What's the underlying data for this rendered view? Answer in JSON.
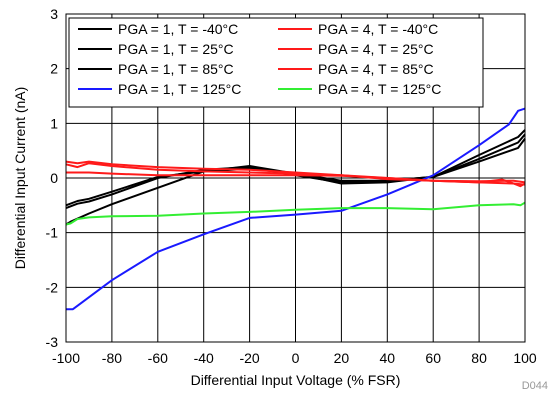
{
  "chart_data": {
    "type": "line",
    "title": "",
    "xlabel": "Differential Input Voltage (% FSR)",
    "ylabel": "Differential Input Current (nA)",
    "xlim": [
      -100,
      100
    ],
    "ylim": [
      -3,
      3
    ],
    "x_ticks": [
      "-100",
      "-80",
      "-60",
      "-40",
      "-20",
      "0",
      "20",
      "40",
      "60",
      "80",
      "100"
    ],
    "y_ticks": [
      "-3",
      "-2",
      "-1",
      "0",
      "1",
      "2",
      "3"
    ],
    "grid": true,
    "legend_position": "top",
    "figure_code": "D044",
    "series": [
      {
        "name": "PGA = 1, T = -40°C",
        "color": "#000000",
        "x": [
          -100,
          -95,
          -90,
          -80,
          -60,
          -40,
          -20,
          0,
          20,
          40,
          60,
          80,
          97,
          100
        ],
        "y": [
          -0.5,
          -0.42,
          -0.38,
          -0.25,
          0.02,
          0.12,
          0.17,
          0.08,
          -0.05,
          -0.05,
          0.02,
          0.3,
          0.55,
          0.72
        ]
      },
      {
        "name": "PGA = 1, T = 25°C",
        "color": "#000000",
        "x": [
          -100,
          -95,
          -90,
          -80,
          -60,
          -40,
          -20,
          0,
          20,
          40,
          60,
          80,
          97,
          100
        ],
        "y": [
          -0.55,
          -0.47,
          -0.43,
          -0.3,
          0.0,
          0.15,
          0.2,
          0.05,
          -0.08,
          -0.05,
          0.02,
          0.35,
          0.65,
          0.8
        ]
      },
      {
        "name": "PGA = 1, T = 85°C",
        "color": "#000000",
        "x": [
          -100,
          -98,
          -90,
          -80,
          -60,
          -40,
          -20,
          0,
          20,
          40,
          60,
          80,
          97,
          100
        ],
        "y": [
          -0.85,
          -0.8,
          -0.65,
          -0.48,
          -0.18,
          0.12,
          0.22,
          0.08,
          -0.1,
          -0.08,
          0.02,
          0.42,
          0.75,
          0.88
        ]
      },
      {
        "name": "PGA = 1, T = 125°C",
        "color": "#1a1aff",
        "x": [
          -100,
          -97,
          -80,
          -60,
          -40,
          -20,
          0,
          20,
          40,
          60,
          80,
          93,
          97,
          100
        ],
        "y": [
          -2.4,
          -2.4,
          -1.87,
          -1.35,
          -1.03,
          -0.73,
          -0.67,
          -0.6,
          -0.3,
          0.05,
          0.6,
          0.98,
          1.23,
          1.27
        ]
      },
      {
        "name": "PGA = 4, T = -40°C",
        "color": "#ff1a1a",
        "x": [
          -100,
          -95,
          -90,
          -80,
          -60,
          -40,
          -20,
          0,
          20,
          40,
          60,
          80,
          95,
          100
        ],
        "y": [
          0.3,
          0.27,
          0.3,
          0.25,
          0.2,
          0.17,
          0.15,
          0.1,
          0.05,
          -0.02,
          -0.05,
          -0.08,
          -0.1,
          -0.12
        ]
      },
      {
        "name": "PGA = 4, T = 25°C",
        "color": "#ff1a1a",
        "x": [
          -100,
          -95,
          -90,
          -80,
          -60,
          -40,
          -20,
          0,
          20,
          40,
          60,
          80,
          95,
          100
        ],
        "y": [
          0.25,
          0.2,
          0.27,
          0.22,
          0.15,
          0.12,
          0.1,
          0.08,
          0.05,
          0.0,
          -0.05,
          -0.06,
          -0.05,
          -0.08
        ]
      },
      {
        "name": "PGA = 4, T = 85°C",
        "color": "#ff1a1a",
        "x": [
          -100,
          -95,
          -90,
          -80,
          -60,
          -40,
          -20,
          0,
          20,
          40,
          60,
          80,
          90,
          95,
          98,
          100
        ],
        "y": [
          0.1,
          0.1,
          0.1,
          0.08,
          0.05,
          0.05,
          0.05,
          0.05,
          0.04,
          0.0,
          -0.05,
          -0.08,
          -0.03,
          -0.1,
          -0.15,
          -0.1
        ]
      },
      {
        "name": "PGA = 4, T = 125°C",
        "color": "#33ee33",
        "x": [
          -100,
          -98,
          -95,
          -90,
          -80,
          -60,
          -40,
          -20,
          0,
          20,
          40,
          60,
          80,
          95,
          98,
          100
        ],
        "y": [
          -0.85,
          -0.83,
          -0.75,
          -0.72,
          -0.7,
          -0.69,
          -0.65,
          -0.62,
          -0.58,
          -0.55,
          -0.55,
          -0.57,
          -0.5,
          -0.48,
          -0.5,
          -0.45
        ]
      }
    ]
  }
}
